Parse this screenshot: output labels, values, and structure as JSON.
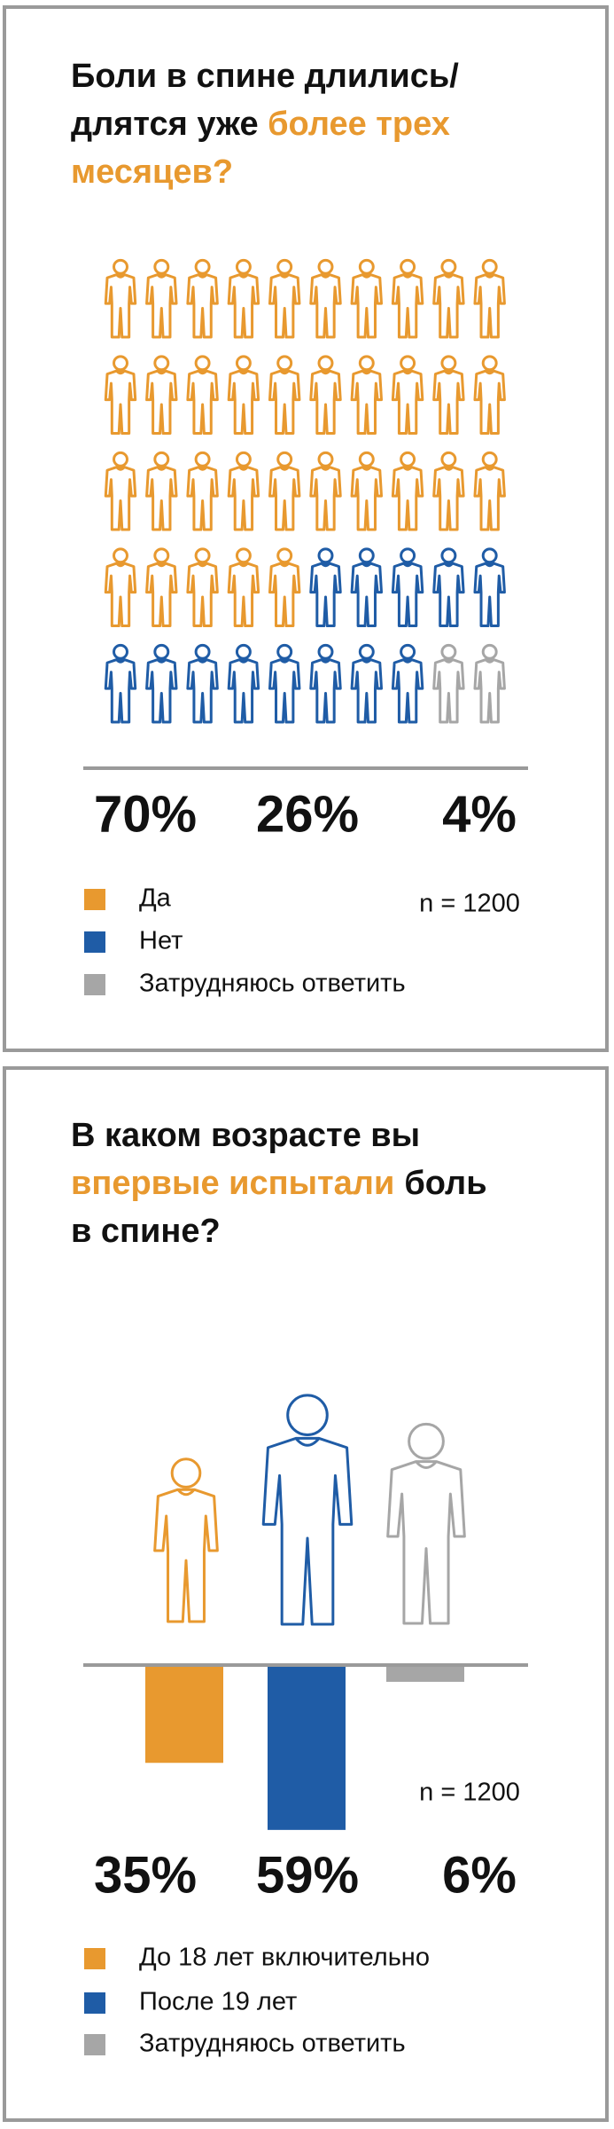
{
  "chart_data": [
    {
      "type": "pictogram",
      "title_lines": [
        [
          {
            "text": "Боли в спине длились/"
          }
        ],
        [
          {
            "text": "длятся уже"
          },
          {
            "text": "более трех",
            "color": "#e8992f"
          }
        ],
        [
          {
            "text": "месяцев?",
            "color": "#e8992f"
          }
        ]
      ],
      "categories": [
        "Да",
        "Нет",
        "Затрудняюсь ответить"
      ],
      "values": [
        70,
        26,
        4
      ],
      "value_labels": [
        "70%",
        "26%",
        "4%"
      ],
      "colors": [
        "#e8992f",
        "#1f5ca6",
        "#a6a6a6"
      ],
      "note": "n = 1200"
    },
    {
      "type": "bar",
      "title_lines": [
        [
          {
            "text": "В каком возрасте вы"
          }
        ],
        [
          {
            "text": "впервые испытали",
            "color": "#e8992f"
          },
          {
            "text": "боль"
          }
        ],
        [
          {
            "text": "в спине?"
          }
        ]
      ],
      "categories": [
        "До 18 лет включительно",
        "После 19 лет",
        "Затрудняюсь ответить"
      ],
      "values": [
        35,
        59,
        6
      ],
      "value_labels": [
        "35%",
        "59%",
        "6%"
      ],
      "colors": [
        "#e8992f",
        "#1f5ca6",
        "#a6a6a6"
      ],
      "note": "n = 1200"
    }
  ]
}
